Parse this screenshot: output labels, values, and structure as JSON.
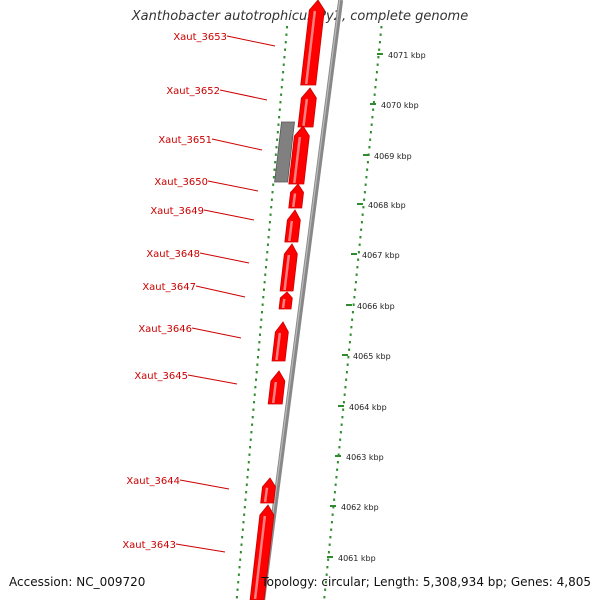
{
  "title": "Xanthobacter autotrophicus Py2, complete genome",
  "accession": "Accession: NC_009720",
  "topology": "Topology: circular; Length: 5,308,934 bp; Genes: 4,805",
  "colors": {
    "gene": "#ff0000",
    "gene_dark": "#cc0000",
    "pseudo": "#808080",
    "backbone": "#888888",
    "tick": "#2e8b2e",
    "label": "#cc0000"
  },
  "scale_ticks": [
    "4071 kbp",
    "4070 kbp",
    "4069 kbp",
    "4068 kbp",
    "4067 kbp",
    "4066 kbp",
    "4065 kbp",
    "4064 kbp",
    "4063 kbp",
    "4062 kbp",
    "4061 kbp"
  ],
  "genes": [
    {
      "label": "Xaut_3653",
      "type": "coding"
    },
    {
      "label": "Xaut_3652",
      "type": "coding"
    },
    {
      "label": "Xaut_3651",
      "type": "pseudo"
    },
    {
      "label": "Xaut_3650",
      "type": "coding"
    },
    {
      "label": "Xaut_3649",
      "type": "coding"
    },
    {
      "label": "Xaut_3648",
      "type": "coding"
    },
    {
      "label": "Xaut_3647",
      "type": "coding"
    },
    {
      "label": "Xaut_3646",
      "type": "coding"
    },
    {
      "label": "Xaut_3645",
      "type": "coding"
    },
    {
      "label": "Xaut_3644",
      "type": "coding"
    },
    {
      "label": "Xaut_3643",
      "type": "coding"
    }
  ]
}
